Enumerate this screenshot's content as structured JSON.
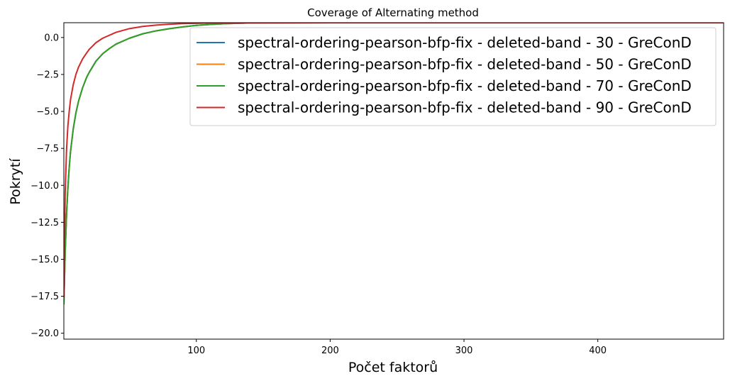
{
  "chart_data": {
    "type": "line",
    "title": "Coverage of Alternating method",
    "xlabel": "Počet faktorů",
    "ylabel": "Pokrytí",
    "xlim": [
      1,
      494
    ],
    "ylim": [
      -20.4,
      1.0
    ],
    "xticks": [
      100,
      200,
      300,
      400
    ],
    "xtick_labels": [
      "100",
      "200",
      "300",
      "400"
    ],
    "yticks": [
      0.0,
      -2.5,
      -5.0,
      -7.5,
      -10.0,
      -12.5,
      -15.0,
      -17.5,
      -20.0
    ],
    "ytick_labels": [
      "0.0",
      "−2.5",
      "−5.0",
      "−7.5",
      "−10.0",
      "−12.5",
      "−15.0",
      "−17.5",
      "−20.0"
    ],
    "legend_position": "top-right",
    "grid": false,
    "series": [
      {
        "name": "spectral-ordering-pearson-bfp-fix - deleted-band - 30 - GreConD",
        "color": "#1f77b4",
        "x": [
          1,
          2,
          3,
          4,
          5,
          6,
          8,
          10,
          12,
          15,
          18,
          20,
          25,
          30,
          35,
          40,
          50,
          60,
          70,
          80,
          90,
          100,
          110,
          120,
          130,
          140,
          160,
          200,
          250,
          300,
          400,
          494
        ],
        "y": [
          -18.0,
          -14.5,
          -12.0,
          -10.2,
          -8.8,
          -7.7,
          -6.2,
          -5.1,
          -4.3,
          -3.4,
          -2.7,
          -2.35,
          -1.6,
          -1.1,
          -0.75,
          -0.45,
          -0.05,
          0.25,
          0.45,
          0.6,
          0.72,
          0.82,
          0.88,
          0.93,
          0.96,
          0.98,
          0.99,
          1.0,
          1.0,
          1.0,
          1.0,
          1.0
        ]
      },
      {
        "name": "spectral-ordering-pearson-bfp-fix - deleted-band - 50 - GreConD",
        "color": "#ff7f0e",
        "x": [
          1,
          2,
          3,
          4,
          5,
          6,
          8,
          10,
          12,
          15,
          18,
          20,
          25,
          30,
          35,
          40,
          50,
          60,
          70,
          80,
          90,
          100,
          110,
          120,
          130,
          140,
          160,
          200,
          250,
          300,
          400,
          494
        ],
        "y": [
          -18.0,
          -14.5,
          -12.0,
          -10.2,
          -8.8,
          -7.7,
          -6.2,
          -5.1,
          -4.3,
          -3.4,
          -2.7,
          -2.35,
          -1.6,
          -1.1,
          -0.75,
          -0.45,
          -0.05,
          0.25,
          0.45,
          0.6,
          0.72,
          0.82,
          0.88,
          0.93,
          0.96,
          0.98,
          0.99,
          1.0,
          1.0,
          1.0,
          1.0,
          1.0
        ]
      },
      {
        "name": "spectral-ordering-pearson-bfp-fix - deleted-band - 70 - GreConD",
        "color": "#2ca02c",
        "x": [
          1,
          2,
          3,
          4,
          5,
          6,
          8,
          10,
          12,
          15,
          18,
          20,
          25,
          30,
          35,
          40,
          50,
          60,
          70,
          80,
          90,
          100,
          110,
          120,
          130,
          140,
          160,
          200,
          250,
          300,
          400,
          494
        ],
        "y": [
          -18.0,
          -14.5,
          -12.0,
          -10.2,
          -8.8,
          -7.7,
          -6.2,
          -5.1,
          -4.3,
          -3.4,
          -2.7,
          -2.35,
          -1.6,
          -1.1,
          -0.75,
          -0.45,
          -0.05,
          0.25,
          0.45,
          0.6,
          0.72,
          0.82,
          0.88,
          0.93,
          0.96,
          0.98,
          0.99,
          1.0,
          1.0,
          1.0,
          1.0,
          1.0
        ]
      },
      {
        "name": "spectral-ordering-pearson-bfp-fix - deleted-band - 90 - GreConD",
        "color": "#d62728",
        "x": [
          1,
          2,
          3,
          4,
          5,
          6,
          8,
          10,
          12,
          15,
          18,
          20,
          25,
          30,
          40,
          50,
          60,
          70,
          80,
          90,
          100,
          110,
          120,
          130,
          140,
          160,
          200,
          250,
          300,
          400,
          494
        ],
        "y": [
          -17.5,
          -10.5,
          -7.6,
          -6.0,
          -5.0,
          -4.2,
          -3.2,
          -2.5,
          -2.0,
          -1.45,
          -1.05,
          -0.8,
          -0.35,
          -0.05,
          0.35,
          0.6,
          0.75,
          0.84,
          0.9,
          0.94,
          0.96,
          0.98,
          0.99,
          1.0,
          1.0,
          1.0,
          1.0,
          1.0,
          1.0,
          1.0,
          1.0
        ]
      }
    ]
  }
}
